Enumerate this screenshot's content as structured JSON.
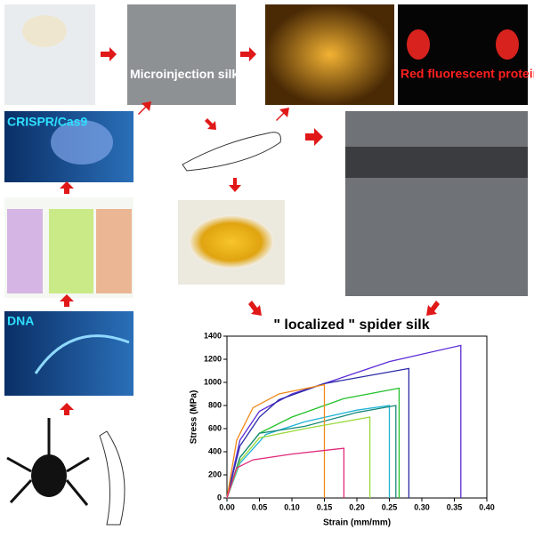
{
  "panels": {
    "microinjection": "Microinjection silkworm eggs",
    "fluorescent": "Red fluorescent protein report",
    "crispr": "CRISPR/Cas9",
    "dna": "DNA"
  },
  "chart_data": {
    "type": "line",
    "title": "\" localized \" spider silk",
    "x_label": "Strain (mm/mm)",
    "y_label": "Stress (MPa)",
    "xlim": [
      0,
      0.4
    ],
    "ylim": [
      0,
      1400
    ],
    "xticks": [
      {
        "value": 0,
        "label": "0.00"
      },
      {
        "value": 0.05,
        "label": "0.05"
      },
      {
        "value": 0.1,
        "label": "0.10"
      },
      {
        "value": 0.15,
        "label": "0.15"
      },
      {
        "value": 0.2,
        "label": "0.20"
      },
      {
        "value": 0.25,
        "label": "0.25"
      },
      {
        "value": 0.3,
        "label": "0.30"
      },
      {
        "value": 0.35,
        "label": "0.35"
      },
      {
        "value": 0.4,
        "label": "0.40"
      }
    ],
    "yticks": [
      0,
      200,
      400,
      600,
      800,
      1000,
      1200,
      1400
    ],
    "series": [
      {
        "color": "#5b2bd6",
        "x": [
          0,
          0.02,
          0.05,
          0.1,
          0.15,
          0.25,
          0.36,
          0.36
        ],
        "values": [
          0,
          500,
          750,
          900,
          990,
          1180,
          1320,
          0
        ]
      },
      {
        "color": "#2a2aa8",
        "x": [
          0,
          0.02,
          0.05,
          0.08,
          0.15,
          0.28,
          0.28
        ],
        "values": [
          0,
          450,
          700,
          850,
          990,
          1120,
          0
        ]
      },
      {
        "color": "#22c02a",
        "x": [
          0,
          0.02,
          0.05,
          0.1,
          0.18,
          0.265,
          0.265
        ],
        "values": [
          0,
          350,
          560,
          700,
          860,
          950,
          0
        ]
      },
      {
        "color": "#1fb3d6",
        "x": [
          0,
          0.02,
          0.06,
          0.12,
          0.2,
          0.25,
          0.25
        ],
        "values": [
          0,
          300,
          550,
          660,
          760,
          800,
          0
        ]
      },
      {
        "color": "#17897a",
        "x": [
          0,
          0.02,
          0.05,
          0.12,
          0.2,
          0.26,
          0.26
        ],
        "values": [
          0,
          350,
          560,
          620,
          740,
          800,
          0
        ]
      },
      {
        "color": "#f08a1c",
        "x": [
          0,
          0.015,
          0.04,
          0.08,
          0.15,
          0.15
        ],
        "values": [
          0,
          500,
          780,
          900,
          980,
          0
        ]
      },
      {
        "color": "#9ad83a",
        "x": [
          0,
          0.02,
          0.05,
          0.12,
          0.22,
          0.22
        ],
        "values": [
          0,
          320,
          520,
          600,
          700,
          0
        ]
      },
      {
        "color": "#e0287a",
        "x": [
          0,
          0.015,
          0.04,
          0.1,
          0.18,
          0.18
        ],
        "values": [
          0,
          260,
          330,
          380,
          430,
          0
        ]
      }
    ]
  }
}
